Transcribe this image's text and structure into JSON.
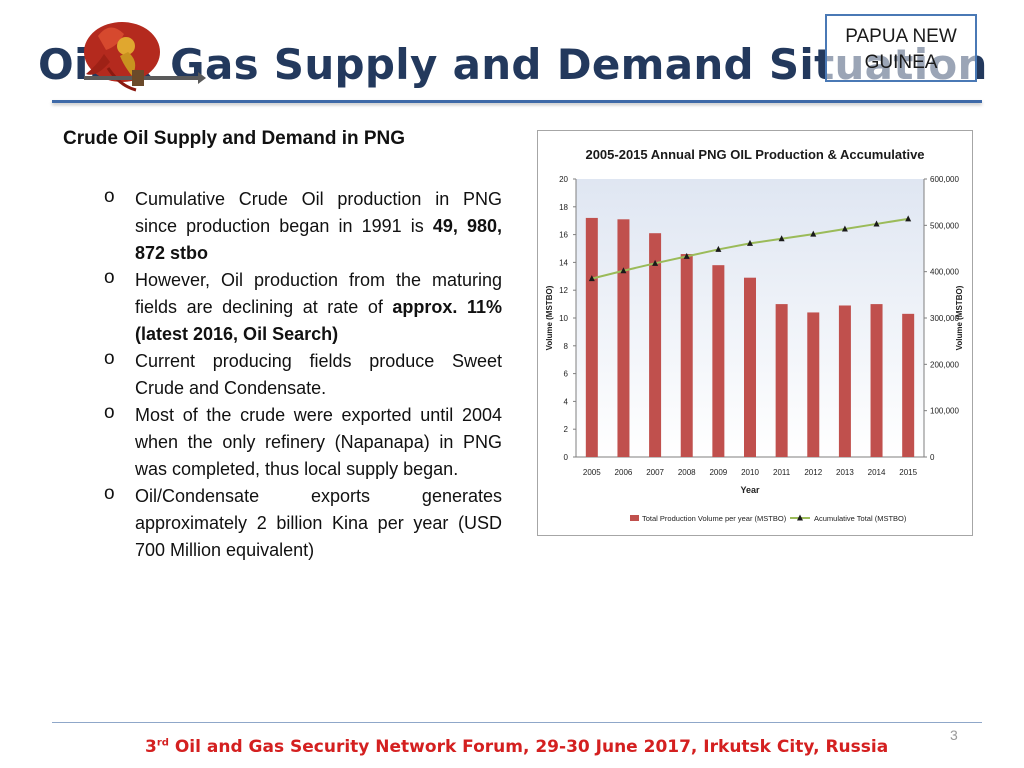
{
  "header": {
    "title": "Oil & Gas Supply and Demand Situation",
    "country_line1": "PAPUA NEW",
    "country_line2": "GUINEA"
  },
  "section": {
    "heading": "Crude Oil Supply and Demand in PNG",
    "bullets": [
      {
        "text": "Cumulative Crude Oil production in PNG since production began in 1991 is ",
        "bold": "49, 980, 872 stbo"
      },
      {
        "text": "However, Oil production from the maturing fields are declining at rate of ",
        "bold": "approx. 11% (latest 2016, Oil Search)"
      },
      {
        "text": "Current producing fields produce Sweet Crude and Condensate.",
        "bold": ""
      },
      {
        "text": "Most of the crude were exported until 2004 when the only refinery (Napanapa) in PNG was completed, thus local supply began.",
        "bold": ""
      },
      {
        "text": "Oil/Condensate exports generates approximately 2 billion Kina per year (USD 700 Million equivalent)",
        "bold": ""
      }
    ],
    "bullet_marker": "o"
  },
  "chart_data": {
    "type": "bar",
    "title": "2005-2015 Annual PNG OIL Production & Accumulative",
    "xlabel": "Year",
    "ylabel": "Volume (MSTBO)",
    "y2label": "Volume (MSTBO)",
    "categories": [
      "2005",
      "2006",
      "2007",
      "2008",
      "2009",
      "2010",
      "2011",
      "2012",
      "2013",
      "2014",
      "2015"
    ],
    "ylim": [
      0,
      20
    ],
    "y_ticks": [
      "0",
      "2",
      "4",
      "6",
      "8",
      "10",
      "12",
      "14",
      "16",
      "18",
      "20"
    ],
    "y2lim": [
      0,
      600000
    ],
    "y2_ticks": [
      "0",
      "100,000",
      "200,000",
      "300,000",
      "400,000",
      "500,000",
      "600,000"
    ],
    "series": [
      {
        "name": "Total Production Volume per year (MSTBO)",
        "type": "bar",
        "axis": "left",
        "color": "#c0504d",
        "values": [
          17.2,
          17.1,
          16.1,
          14.6,
          13.8,
          12.9,
          11.0,
          10.4,
          10.9,
          11.0,
          10.3
        ]
      },
      {
        "name": "Acumulative Total (MSTBO)",
        "type": "line",
        "axis": "right",
        "color": "#9bbb59",
        "marker_color": "#1a1a1a",
        "values": [
          385000,
          402000,
          418000,
          433000,
          448000,
          461000,
          471000,
          481000,
          492000,
          503000,
          514000
        ]
      }
    ],
    "legend_position": "bottom",
    "grid": false
  },
  "footer": {
    "ordinal": "3",
    "ordinal_suffix": "rd",
    "text": " Oil and Gas Security Network Forum, 29-30 June 2017, Irkutsk City, Russia",
    "page_number": "3"
  }
}
